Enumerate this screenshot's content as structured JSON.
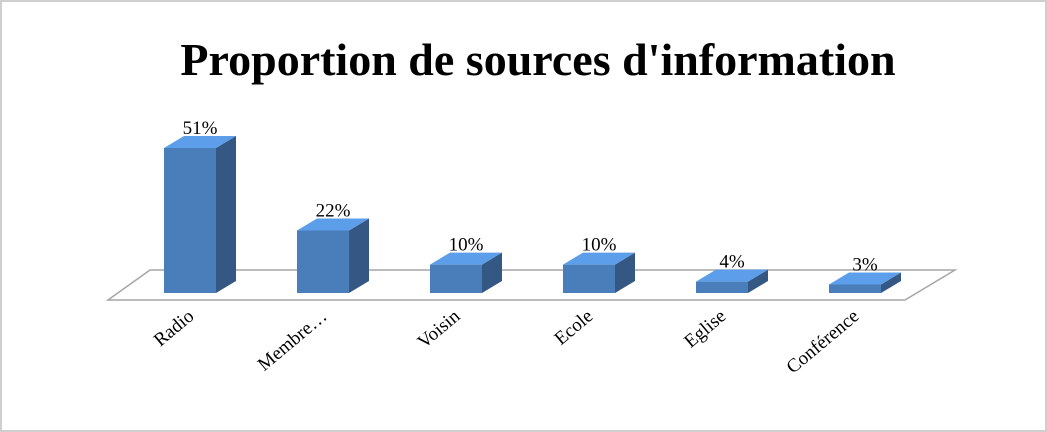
{
  "chart_data": {
    "type": "bar3d",
    "title": "Proportion de sources d'information",
    "categories": [
      "Radio",
      "Membre…",
      "Voisin",
      "Ecole",
      "Eglise",
      "Conférence"
    ],
    "values": [
      51,
      22,
      10,
      10,
      4,
      3
    ],
    "value_labels": [
      "51%",
      "22%",
      "10%",
      "10%",
      "4%",
      "3%"
    ],
    "color": "#4a7ebb"
  }
}
